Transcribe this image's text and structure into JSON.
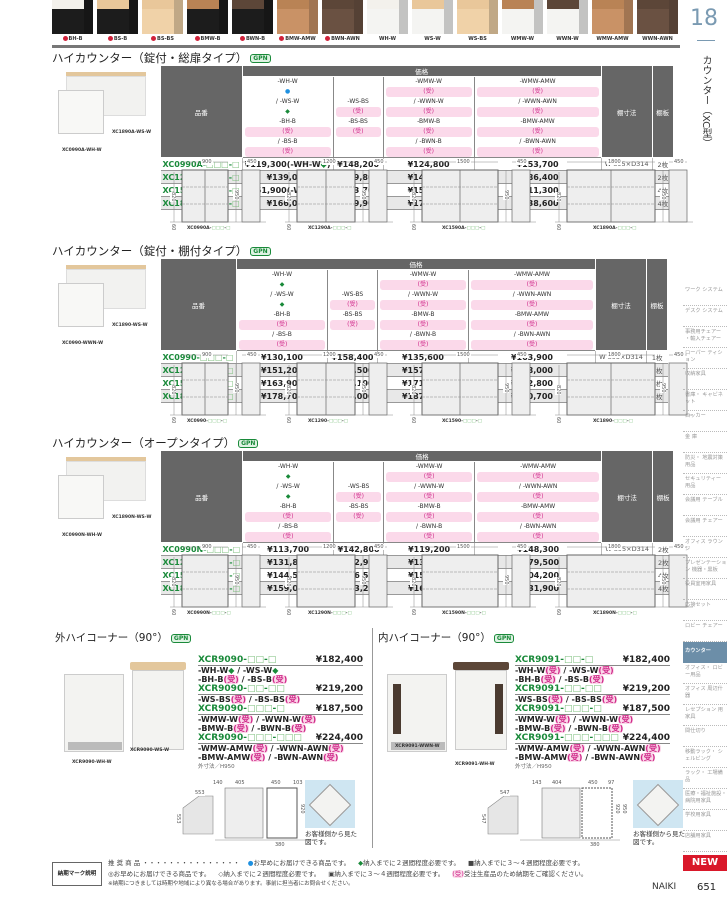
{
  "swatches": [
    {
      "label": "BH-B",
      "made_to_order": true,
      "top": "#f3f1ec",
      "body": "#1c1c1c"
    },
    {
      "label": "BS-B",
      "made_to_order": true,
      "top": "#e9c79a",
      "body": "#1c1c1c"
    },
    {
      "label": "BS-BS",
      "made_to_order": true,
      "top": "#e9c79a",
      "body": "#f0d2a8"
    },
    {
      "label": "BMW-B",
      "made_to_order": true,
      "top": "#b98355",
      "body": "#1c1c1c"
    },
    {
      "label": "BWN-B",
      "made_to_order": true,
      "top": "#5c4638",
      "body": "#1c1c1c"
    },
    {
      "label": "BMW-AMW",
      "made_to_order": true,
      "top": "#b98355",
      "body": "#c99266"
    },
    {
      "label": "BWN-AWN",
      "made_to_order": true,
      "top": "#5c4638",
      "body": "#6a5142"
    },
    {
      "label": "WH-W",
      "made_to_order": false,
      "top": "#f3f1ec",
      "body": "#f4f4f2"
    },
    {
      "label": "WS-W",
      "made_to_order": false,
      "top": "#e9c79a",
      "body": "#f4f4f2"
    },
    {
      "label": "WS-BS",
      "made_to_order": false,
      "top": "#e9c79a",
      "body": "#f0d2a8"
    },
    {
      "label": "WMW-W",
      "made_to_order": false,
      "top": "#b98355",
      "body": "#f4f4f2"
    },
    {
      "label": "WWN-W",
      "made_to_order": false,
      "top": "#5c4638",
      "body": "#f4f4f2"
    },
    {
      "label": "WMW-AMW",
      "made_to_order": false,
      "top": "#b98355",
      "body": "#c99266"
    },
    {
      "label": "WWN-AWN",
      "made_to_order": false,
      "top": "#5c4638",
      "body": "#6a5142"
    }
  ],
  "chapter": {
    "number": "18",
    "title": "カウンター（XC型）"
  },
  "gpn_label": "GPN",
  "table_headers": {
    "part": "品番",
    "price": "価格",
    "shelf_dim": "棚寸法",
    "shelves": "棚板"
  },
  "sections": [
    {
      "title": "ハイカウンター（錠付・総扉タイプ）",
      "photo_captions": [
        "XC1890A-WS-W",
        "XC0990A-WH-W"
      ],
      "col_heads": [
        [
          "-WH-W● / -WS-W◆",
          "-BH-B(受) / -BS-B(受)"
        ],
        [
          "-WS-BS(受)",
          "-BS-BS(受)"
        ],
        [
          "-WMW-W(受) / -WWN-W(受)",
          "-BMW-B(受) / -BWN-B(受)"
        ],
        [
          "-WMW-AMW(受) / -WWN-AWN(受)",
          "-BMW-AMW(受) / -BWN-AWN(受)"
        ]
      ],
      "rows": [
        {
          "part": "XC0990A-□□□-□",
          "prices": [
            "¥119,300(-WH-W◆)",
            "¥148,200",
            "¥124,800",
            "¥153,700"
          ],
          "dim": "W 895×D314",
          "shelves": "2枚"
        },
        {
          "part": "XC1290A-□□□-□",
          "prices": [
            "¥139,000",
            "¥179,800",
            "¥145,600",
            "¥186,400"
          ],
          "dim": "W1195×D314",
          "shelves": "2枚"
        },
        {
          "part": "XC1590A-□□□-□",
          "prices": [
            "¥151,900(-WH-W◆)",
            "¥203,700",
            "¥159,600",
            "¥211,300"
          ],
          "dim": "W 745×D314",
          "shelves": "4枚"
        },
        {
          "part": "XC1890A-□□□-□",
          "prices": [
            "¥166,000",
            "¥229,900",
            "¥174,800",
            "¥238,600"
          ],
          "dim": "W 895×D314",
          "shelves": "4枚"
        }
      ],
      "drawings": [
        {
          "width": "900",
          "depth": "450",
          "h1": "820",
          "h2": "950",
          "base": "60",
          "caption": "XC0990A-□□□-□"
        },
        {
          "width": "1200",
          "depth": "450",
          "h1": "820",
          "h2": "950",
          "base": "60",
          "caption": "XC1290A-□□□-□"
        },
        {
          "width": "1500",
          "depth": "450",
          "h1": "820",
          "h2": "950",
          "base": "60",
          "caption": "XC1590A-□□□-□"
        },
        {
          "width": "1800",
          "depth": "450",
          "h1": "820",
          "h2": "950",
          "base": "60",
          "caption": "XC1890A-□□□-□"
        }
      ]
    },
    {
      "title": "ハイカウンター（錠付・棚付タイプ）",
      "photo_captions": [
        "XC1890-WS-W",
        "XC0990-WWN-W"
      ],
      "col_heads": [
        [
          "-WH-W◆ / -WS-W◆",
          "-BH-B(受) / -BS-B(受)"
        ],
        [
          "-WS-BS(受)",
          "-BS-BS(受)"
        ],
        [
          "-WMW-W(受) / -WWN-W(受)",
          "-BMW-B(受) / -BWN-B(受)"
        ],
        [
          "-WMW-AMW(受) / -WWN-AWN(受)",
          "-BMW-AMW(受) / -BWN-AWN(受)"
        ]
      ],
      "rows": [
        {
          "part": "XC0990-□□□-□",
          "prices": [
            "¥130,100",
            "¥158,400",
            "¥135,600",
            "¥163,900"
          ],
          "dim": "W 895×D314",
          "shelves": "1枚"
        },
        {
          "part": "XC1290-□□□-□",
          "prices": [
            "¥151,200",
            "¥191,500",
            "¥157,900",
            "¥198,000"
          ],
          "dim": "W1195×D314",
          "shelves": "1枚"
        },
        {
          "part": "XC1590-□□□-□",
          "prices": [
            "¥163,900",
            "¥215,100",
            "¥171,600",
            "¥222,800"
          ],
          "dim": "W745 ×D314",
          "shelves": "2枚"
        },
        {
          "part": "XC1890-□□□-□",
          "prices": [
            "¥178,700",
            "¥242,000",
            "¥187,500",
            "¥250,700"
          ],
          "dim": "W895 ×D314",
          "shelves": "2枚"
        }
      ],
      "drawings": [
        {
          "width": "900",
          "depth": "450",
          "h1": "820",
          "h2": "950",
          "base": "60",
          "caption": "XC0990-□□□-□"
        },
        {
          "width": "1200",
          "depth": "450",
          "h1": "820",
          "h2": "950",
          "base": "60",
          "caption": "XC1290-□□□-□"
        },
        {
          "width": "1500",
          "depth": "450",
          "h1": "820",
          "h2": "950",
          "base": "60",
          "caption": "XC1590-□□□-□"
        },
        {
          "width": "1800",
          "depth": "450",
          "h1": "820",
          "h2": "950",
          "base": "60",
          "caption": "XC1890-□□□-□"
        }
      ]
    },
    {
      "title": "ハイカウンター（オープンタイプ）",
      "photo_captions": [
        "XC1890N-WS-W",
        "XC0990N-WH-W"
      ],
      "col_heads": [
        [
          "-WH-W◆ / -WS-W◆",
          "-BH-B(受) / -BS-B(受)"
        ],
        [
          "-WS-BS(受)",
          "-BS-BS(受)"
        ],
        [
          "-WMW-W(受) / -WWN-W(受)",
          "-BMW-B(受) / -BWN-B(受)"
        ],
        [
          "-WMW-AMW(受) / -WWN-AWN(受)",
          "-BMW-AMW(受) / -BWN-AWN(受)"
        ]
      ],
      "rows": [
        {
          "part": "XC0990N-□□□-□",
          "prices": [
            "¥113,700",
            "¥142,800",
            "¥119,200",
            "¥148,300"
          ],
          "dim": "W 895×D314",
          "shelves": "2枚"
        },
        {
          "part": "XC1290N-□□□-□",
          "prices": [
            "¥131,800",
            "¥172,900",
            "¥138,300",
            "¥179,500"
          ],
          "dim": "W1195×D314",
          "shelves": "2枚"
        },
        {
          "part": "XC1590N-□□□-□",
          "prices": [
            "¥144,500",
            "¥196,500",
            "¥152,300",
            "¥204,200"
          ],
          "dim": "W 745×D314",
          "shelves": "4枚"
        },
        {
          "part": "XC1890N-□□□-□",
          "prices": [
            "¥159,000",
            "¥223,200",
            "¥167,700",
            "¥231,900"
          ],
          "dim": "W 895×D314",
          "shelves": "4枚"
        }
      ],
      "drawings": [
        {
          "width": "900",
          "depth": "450",
          "h1": "820",
          "h2": "950",
          "base": "60",
          "caption": "XC0990N-□□□-□"
        },
        {
          "width": "1200",
          "depth": "450",
          "h1": "820",
          "h2": "950",
          "base": "60",
          "caption": "XC1290N-□□□-□"
        },
        {
          "width": "1500",
          "depth": "450",
          "h1": "820",
          "h2": "950",
          "base": "60",
          "caption": "XC1590N-□□□-□"
        },
        {
          "width": "1800",
          "depth": "450",
          "h1": "820",
          "h2": "950",
          "base": "60",
          "caption": "XC1890N-□□□-□"
        }
      ]
    }
  ],
  "corners": [
    {
      "title": "外ハイコーナー（90°）",
      "photo_captions": [
        "XCR9090-WH-W",
        "XCR9090-WS-W"
      ],
      "items": [
        {
          "part": "XCR9090-□□-□",
          "price": "¥182,400",
          "variants": [
            "-WH-W◆ / -WS-W◆",
            "-BH-B(受) / -BS-B(受)"
          ]
        },
        {
          "part": "XCR9090-□□-□□",
          "price": "¥219,200",
          "variants": [
            "-WS-BS(受) / -BS-BS(受)"
          ]
        },
        {
          "part": "XCR9090-□□□-□",
          "price": "¥187,500",
          "variants": [
            "-WMW-W(受) / -WWN-W(受)",
            "-BMW-B(受) / -BWN-B(受)"
          ]
        },
        {
          "part": "XCR9090-□□□-□□□",
          "price": "¥224,400",
          "variants": [
            "-WMW-AMW(受) / -WWN-AWN(受)",
            "-BMW-AMW(受) / -BWN-AWN(受)"
          ]
        }
      ],
      "note": "外寸法／H950",
      "dims": {
        "top": "553",
        "side": "553",
        "a": "140",
        "b": "405",
        "c": "450",
        "d": "103",
        "h1": "920",
        "h2": "950",
        "bottom": "380"
      },
      "view_note": "お客様側から見た図です。"
    },
    {
      "title": "内ハイコーナー（90°）",
      "photo_captions": [
        "XCR9091-WH-W",
        "XCR9091-WWN-W"
      ],
      "items": [
        {
          "part": "XCR9091-□□-□",
          "price": "¥182,400",
          "variants": [
            "-WH-W(受) / -WS-W(受)",
            "-BH-B(受) / -BS-B(受)"
          ]
        },
        {
          "part": "XCR9091-□□-□□",
          "price": "¥219,200",
          "variants": [
            "-WS-BS(受) / -BS-BS(受)"
          ]
        },
        {
          "part": "XCR9091-□□□-□",
          "price": "¥187,500",
          "variants": [
            "-WMW-W(受) / -WWN-W(受)",
            "-BMW-B(受) / -BWN-B(受)"
          ]
        },
        {
          "part": "XCR9091-□□□-□□□",
          "price": "¥224,400",
          "variants": [
            "-WMW-AMW(受) / -WWN-AWN(受)",
            "-BMW-AMW(受) / -BWN-AWN(受)"
          ]
        }
      ],
      "note": "外寸法／H950",
      "dims": {
        "top": "547",
        "side": "547",
        "a": "143",
        "b": "404",
        "c": "450",
        "d": "97",
        "h1": "920",
        "h2": "950",
        "bottom": "380"
      },
      "view_note": "お客様側から見た図です。"
    }
  ],
  "sidebar": [
    "ワーク システム",
    "デスク システム",
    "事務用チェアー ・輸入チェアー",
    "ローパー ティション",
    "収納家具",
    "書庫・ キャビネット",
    "ロッカー",
    "金 庫",
    "防災・ 地震対策用品",
    "セキュリティー 用品",
    "会議用 テーブル",
    "会議用 チェアー",
    "オフィス ラウンジ",
    "プレゼンテーション 機器・黒板",
    "役員室用家具",
    "応接セット",
    "ロビー チェアー",
    "カウンター",
    "オフィス・ ロビー用品",
    "オフィス 周辺什器",
    "レセプション 用家具",
    "間仕切り",
    "移動ラック・ シェルビング",
    "ラック・ 工場備品",
    "医療・福祉施設・ 病院用家具",
    "学校用家具",
    "店舗用家具"
  ],
  "sidebar_active": "カウンター",
  "new_badge": "NEW",
  "brand": "NAIKI",
  "page_number": "651",
  "legend": {
    "box": "納期マーク説明",
    "line1": [
      "推 奨 商 品 ・・・・・・・・・・・・・・・",
      "●お早めにお届けできる商品です。",
      "◆納入までに２週間程度必要です。",
      "■納入までに３～４週間程度必要です。"
    ],
    "line2": [
      "◎お早めにお届けできる商品です。",
      "◇納入までに２週間程度必要です。",
      "▣納入までに３～４週間程度必要です。",
      "(受)受注生産品のため納期をご確認ください。"
    ],
    "line3": "※納期につきましては時期や地域により異なる場合があります。事前に担当者にお問合せください。"
  },
  "colors": {
    "part_green": "#1a8a3a",
    "header_gray": "#666666",
    "sidebar_active": "#6c8ea8",
    "new_red": "#d9182a",
    "made_to_order_pink": "#f7b7d8",
    "in_stock_blue": "#1e90e0"
  }
}
